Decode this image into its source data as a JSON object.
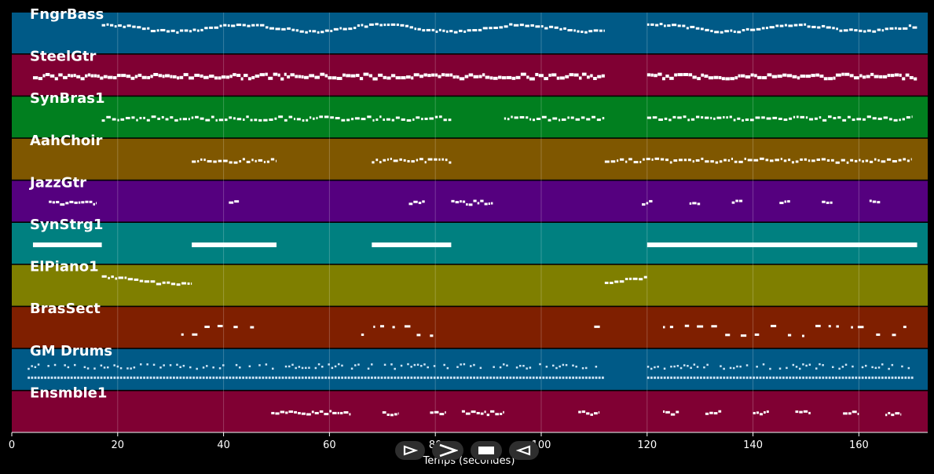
{
  "chart_data": {
    "type": "piano-roll",
    "xlabel": "Temps (secondes)",
    "xlim": [
      0,
      173
    ],
    "xticks": [
      0,
      20,
      40,
      60,
      80,
      100,
      120,
      140,
      160
    ],
    "grid": true,
    "tracks": [
      {
        "name": "FngrBass",
        "color": "#005a87",
        "pattern": "bass",
        "segments": [
          [
            17,
            112
          ],
          [
            120,
            171
          ]
        ]
      },
      {
        "name": "SteelGtr",
        "color": "#800033",
        "pattern": "dense",
        "segments": [
          [
            4,
            84
          ],
          [
            84,
            112
          ],
          [
            120,
            171
          ]
        ]
      },
      {
        "name": "SynBras1",
        "color": "#017f1f",
        "pattern": "short",
        "segments": [
          [
            17,
            83
          ],
          [
            93,
            112
          ],
          [
            120,
            170
          ]
        ]
      },
      {
        "name": "AahChoir",
        "color": "#7f5700",
        "pattern": "short",
        "segments": [
          [
            34,
            50
          ],
          [
            68,
            83
          ],
          [
            112,
            170
          ]
        ]
      },
      {
        "name": "JazzGtr",
        "color": "#55007f",
        "pattern": "sparse",
        "segments": [
          [
            7,
            16
          ],
          [
            41,
            43
          ],
          [
            75,
            78
          ],
          [
            83,
            91
          ],
          [
            119,
            121
          ],
          [
            128,
            130
          ],
          [
            136,
            138
          ],
          [
            145,
            147
          ],
          [
            153,
            155
          ],
          [
            162,
            164
          ]
        ]
      },
      {
        "name": "SynStrg1",
        "color": "#008080",
        "pattern": "bar",
        "segments": [
          [
            4,
            17
          ],
          [
            34,
            50
          ],
          [
            68,
            83
          ],
          [
            120,
            171
          ]
        ]
      },
      {
        "name": "ElPiano1",
        "color": "#7f7f00",
        "pattern": "bass",
        "segments": [
          [
            17,
            34
          ],
          [
            112,
            120
          ]
        ]
      },
      {
        "name": "BrasSect",
        "color": "#7f1f00",
        "pattern": "stab",
        "segments": [
          [
            32,
            48
          ],
          [
            66,
            81
          ],
          [
            110,
            112
          ],
          [
            123,
            170
          ]
        ]
      },
      {
        "name": "GM Drums",
        "color": "#005a87",
        "pattern": "drums",
        "segments": [
          [
            3,
            112
          ],
          [
            120,
            170
          ]
        ]
      },
      {
        "name": "Ensmble1",
        "color": "#800033",
        "pattern": "sparse",
        "segments": [
          [
            49,
            64
          ],
          [
            70,
            73
          ],
          [
            79,
            82
          ],
          [
            85,
            93
          ],
          [
            107,
            111
          ],
          [
            123,
            126
          ],
          [
            131,
            134
          ],
          [
            140,
            143
          ],
          [
            148,
            151
          ],
          [
            157,
            160
          ],
          [
            165,
            168
          ]
        ]
      }
    ]
  },
  "controls": [
    {
      "icon": "play-icon",
      "label": ""
    },
    {
      "icon": "fast-forward-icon",
      "label": ""
    },
    {
      "icon": "stop-icon",
      "label": ""
    },
    {
      "icon": "rewind-icon",
      "label": ""
    }
  ]
}
